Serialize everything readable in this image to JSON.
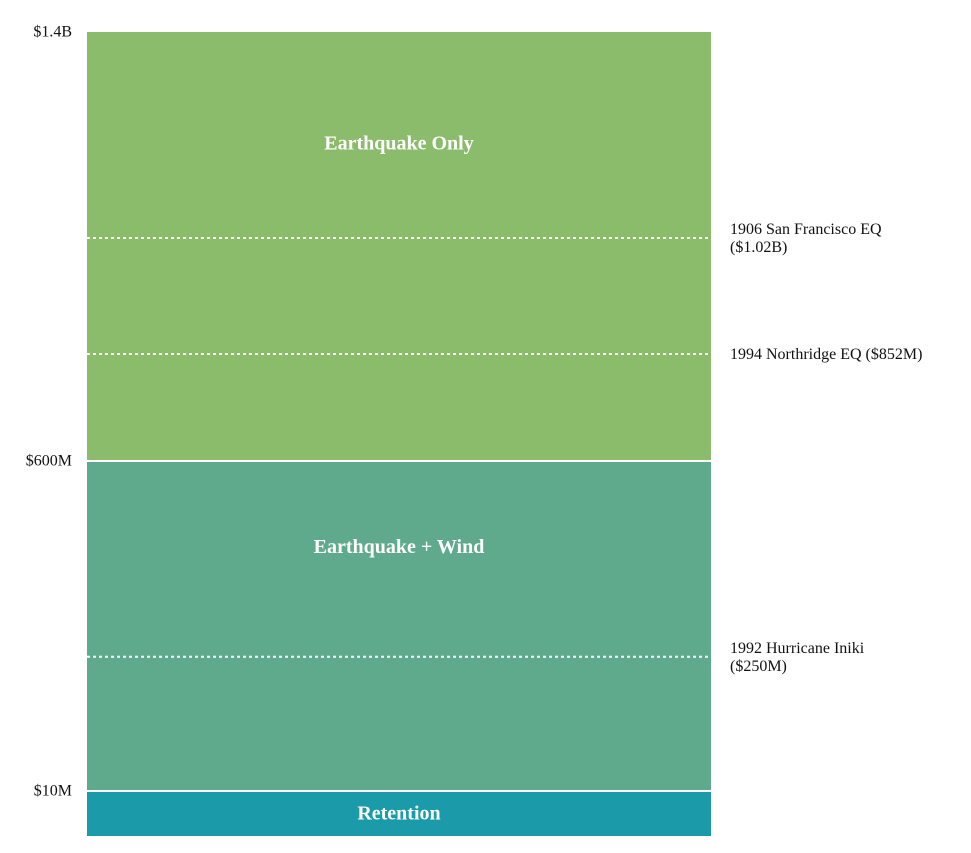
{
  "chart_data": {
    "type": "bar",
    "subtype": "stacked-layers",
    "ticks": [
      "$1.4B",
      "$600M",
      "$10M"
    ],
    "layers": [
      {
        "label": "Retention",
        "from": 0,
        "to": 10,
        "color": "#1b9aaa"
      },
      {
        "label": "Earthquake + Wind",
        "from": 10,
        "to": 600,
        "color": "#5faa8c"
      },
      {
        "label": "Earthquake Only",
        "from": 600,
        "to": 1400,
        "color": "#8bbc6b"
      }
    ],
    "events": [
      {
        "lines": [
          "1906 San Francisco EQ",
          "($1.02B)"
        ],
        "value": 1020
      },
      {
        "lines": [
          "1994 Northridge EQ ($852M)"
        ],
        "value": 852
      },
      {
        "lines": [
          "1992 Hurricane Iniki",
          "($250M)"
        ],
        "value": 250
      }
    ]
  }
}
